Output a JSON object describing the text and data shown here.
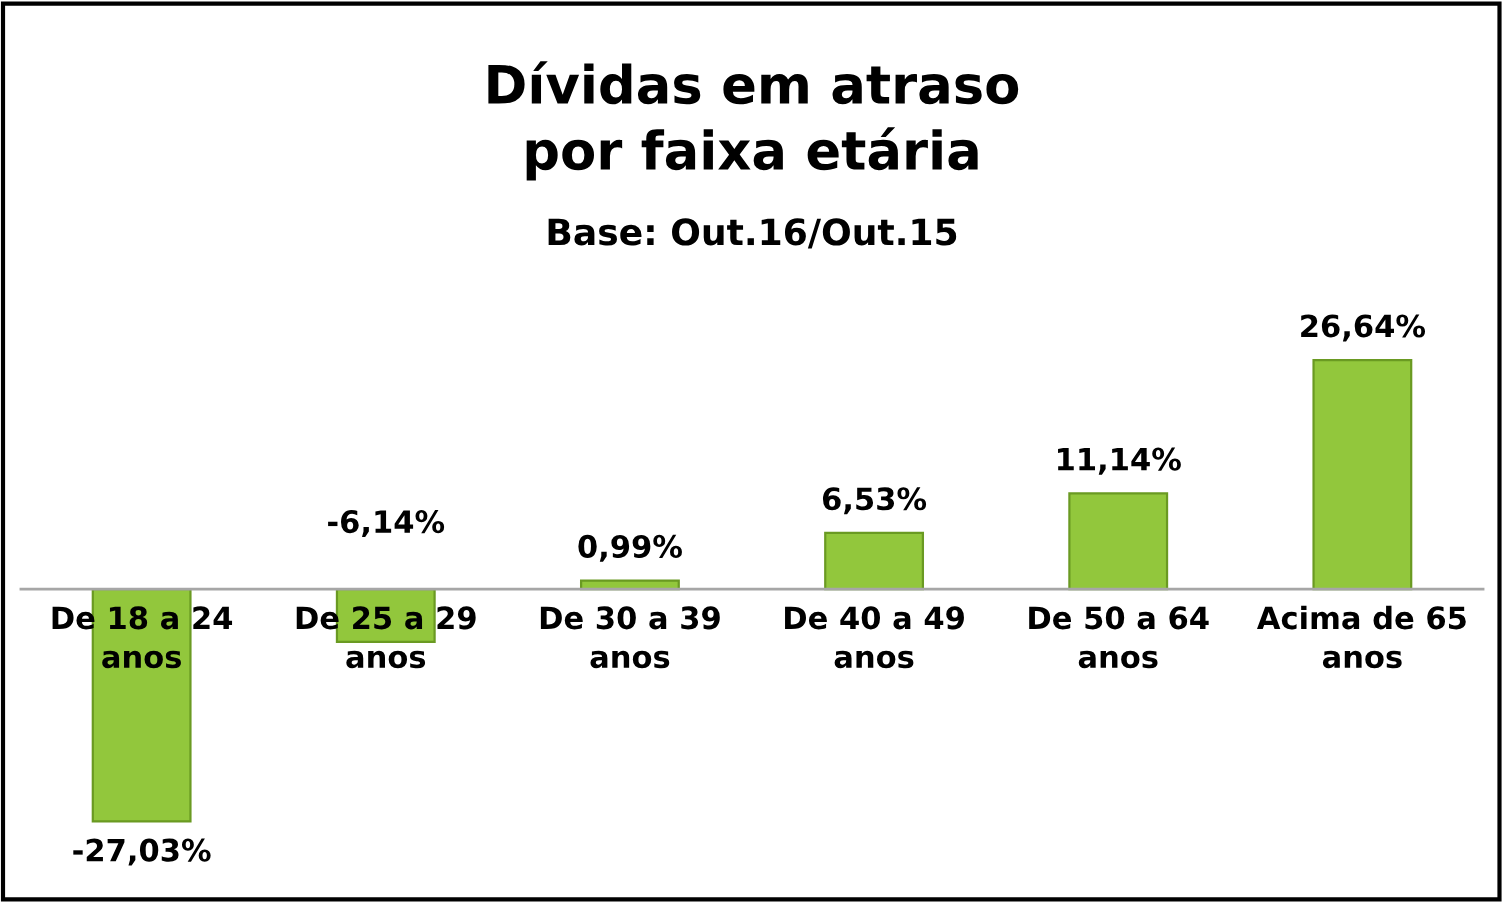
{
  "chart_data": {
    "type": "bar",
    "title": "Dívidas em atraso\npor faixa etária",
    "subtitle": "Base: Out.16/Out.15",
    "categories": [
      "De 18 a 24 anos",
      "De 25 a 29 anos",
      "De 30 a 39 anos",
      "De 40 a 49 anos",
      "De 50 a 64 anos",
      "Acima de 65 anos"
    ],
    "values": [
      -27.03,
      -6.14,
      0.99,
      6.53,
      11.14,
      26.64
    ],
    "value_labels": [
      "-27,03%",
      "-6,14%",
      "0,99%",
      "6,53%",
      "11,14%",
      "26,64%"
    ],
    "color": "#92c73c"
  }
}
